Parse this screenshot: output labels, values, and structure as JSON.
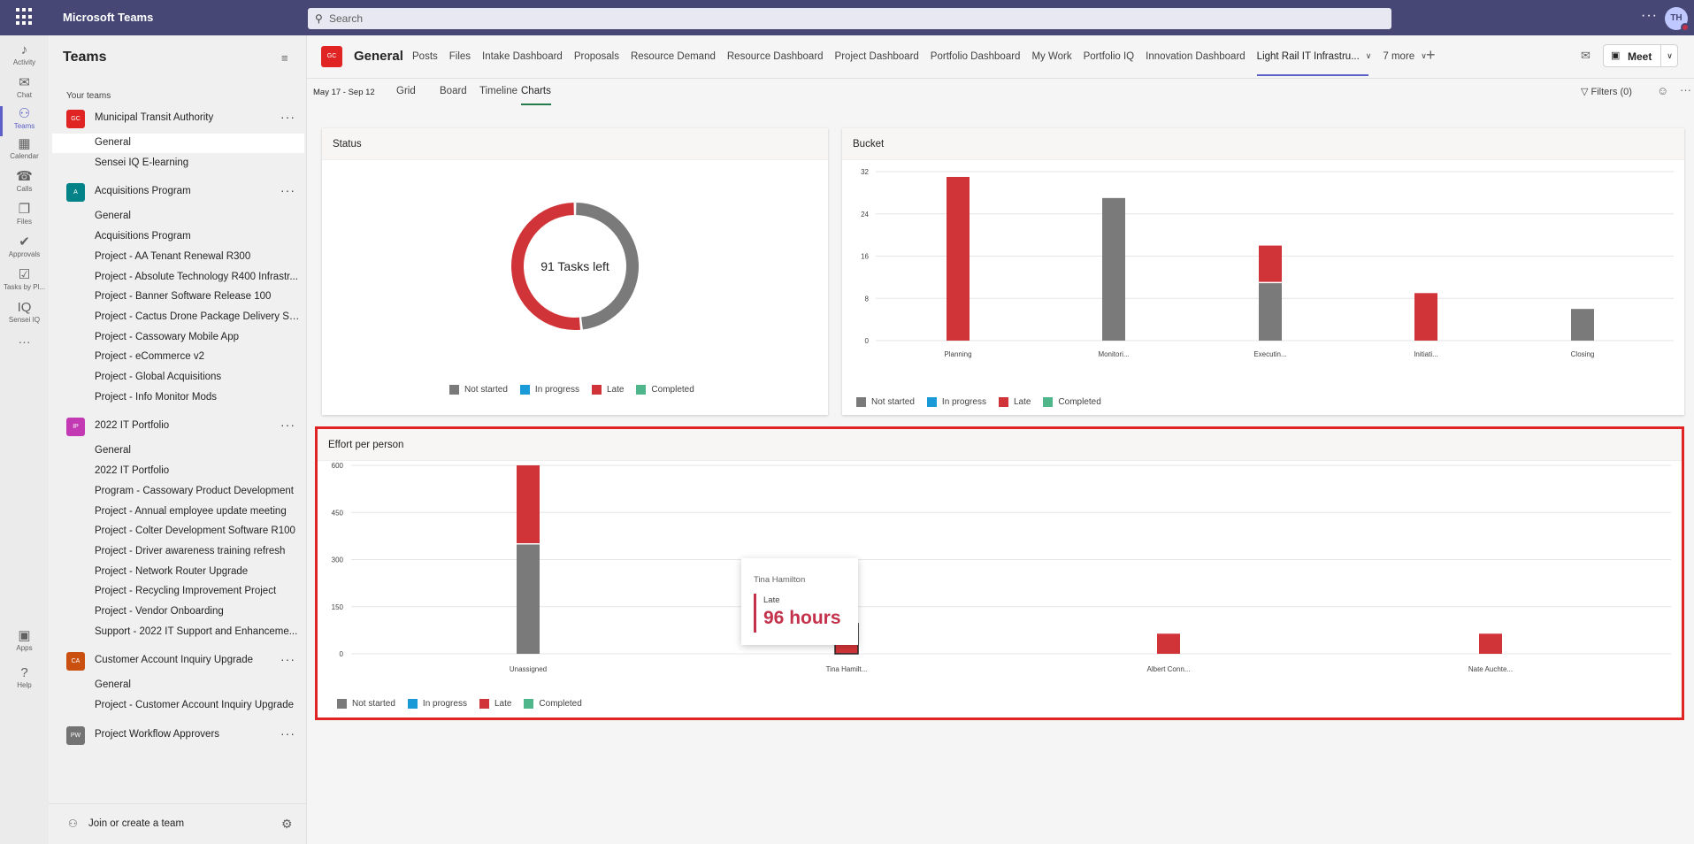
{
  "app": {
    "name": "Microsoft Teams",
    "avatar_initials": "TH"
  },
  "search": {
    "placeholder": "Search"
  },
  "rail": [
    {
      "label": "Activity",
      "icon": "bell-icon"
    },
    {
      "label": "Chat",
      "icon": "chat-icon"
    },
    {
      "label": "Teams",
      "icon": "teams-icon"
    },
    {
      "label": "Calendar",
      "icon": "calendar-icon"
    },
    {
      "label": "Calls",
      "icon": "phone-icon"
    },
    {
      "label": "Files",
      "icon": "file-icon"
    },
    {
      "label": "Approvals",
      "icon": "approvals-icon"
    },
    {
      "label": "Tasks by Pl...",
      "icon": "tasks-icon"
    },
    {
      "label": "Sensei IQ",
      "icon": "sensei-iq-icon"
    },
    {
      "label": "Apps",
      "icon": "apps-icon"
    },
    {
      "label": "Help",
      "icon": "help-icon"
    }
  ],
  "teams_panel": {
    "title": "Teams",
    "your_teams": "Your teams",
    "join_label": "Join or create a team",
    "teams": [
      {
        "name": "Municipal Transit Authority",
        "initials": "GC",
        "color": "#e02424",
        "channels": [
          "General",
          "Sensei IQ E-learning"
        ]
      },
      {
        "name": "Acquisitions Program",
        "initials": "A",
        "color": "#038387",
        "channels": [
          "General",
          "Acquisitions Program",
          "Project - AA Tenant Renewal R300",
          "Project - Absolute Technology R400 Infrastr...",
          "Project - Banner Software Release 100",
          "Project - Cactus Drone Package Delivery So...",
          "Project - Cassowary Mobile App",
          "Project - eCommerce v2",
          "Project - Global Acquisitions",
          "Project - Info Monitor Mods"
        ]
      },
      {
        "name": "2022 IT Portfolio",
        "initials": "IP",
        "color": "#c239b3",
        "channels": [
          "General",
          "2022 IT Portfolio",
          "Program - Cassowary Product Development",
          "Project - Annual employee update meeting",
          "Project - Colter Development Software R100",
          "Project - Driver awareness training refresh",
          "Project - Network Router Upgrade",
          "Project - Recycling Improvement Project",
          "Project - Vendor Onboarding",
          "Support - 2022 IT Support and Enhanceme..."
        ]
      },
      {
        "name": "Customer Account Inquiry Upgrade",
        "initials": "CA",
        "color": "#ca5010",
        "channels": [
          "General",
          "Project - Customer Account Inquiry Upgrade"
        ]
      },
      {
        "name": "Project Workflow Approvers",
        "initials": "PW",
        "color": "#737373",
        "channels": []
      }
    ]
  },
  "channel_header": {
    "team_initials": "GC",
    "channel": "General",
    "tabs": [
      "Posts",
      "Files",
      "Intake Dashboard",
      "Proposals",
      "Resource Demand",
      "Resource Dashboard",
      "Project Dashboard",
      "Portfolio Dashboard",
      "My Work",
      "Portfolio IQ",
      "Innovation Dashboard",
      "Light Rail IT Infrastru...",
      "7 more"
    ],
    "active_tab": "Light Rail IT Infrastru...",
    "meet_label": "Meet"
  },
  "planner": {
    "date_range": "May 17 - Sep 12",
    "views": [
      "Grid",
      "Board",
      "Timeline",
      "Charts"
    ],
    "active_view": "Charts",
    "filters_label": "Filters (0)"
  },
  "legend": [
    {
      "label": "Not started",
      "color": "#7a7a7a"
    },
    {
      "label": "In progress",
      "color": "#1a9bd7"
    },
    {
      "label": "Late",
      "color": "#d13438"
    },
    {
      "label": "Completed",
      "color": "#4fb58a"
    }
  ],
  "status_card": {
    "title": "Status",
    "center_text": "91 Tasks left"
  },
  "bucket_card": {
    "title": "Bucket"
  },
  "effort_card": {
    "title": "Effort per person"
  },
  "tooltip": {
    "person": "Tina Hamilton",
    "status": "Late",
    "value": "96 hours"
  },
  "chart_data": [
    {
      "type": "pie",
      "title": "Status",
      "categories": [
        "Not started",
        "In progress",
        "Late",
        "Completed"
      ],
      "values": [
        44,
        0,
        47,
        0
      ]
    },
    {
      "type": "bar",
      "title": "Bucket",
      "stacked": true,
      "categories": [
        "Planning",
        "Monitori...",
        "Executin...",
        "Initiati...",
        "Closing"
      ],
      "yticks": [
        0,
        8,
        16,
        24,
        32
      ],
      "ylim": [
        0,
        32
      ],
      "series": [
        {
          "name": "Not started",
          "values": [
            0,
            27,
            11,
            0,
            6
          ]
        },
        {
          "name": "In progress",
          "values": [
            0,
            0,
            0,
            0,
            0
          ]
        },
        {
          "name": "Late",
          "values": [
            31,
            0,
            7,
            9,
            0
          ]
        },
        {
          "name": "Completed",
          "values": [
            0,
            0,
            0,
            0,
            0
          ]
        }
      ]
    },
    {
      "type": "bar",
      "title": "Effort per person",
      "stacked": true,
      "categories": [
        "Unassigned",
        "Tina Hamilt...",
        "Albert Conn...",
        "Nate Auchte..."
      ],
      "yticks": [
        0,
        150,
        300,
        450,
        600
      ],
      "ylim": [
        0,
        600
      ],
      "series": [
        {
          "name": "Not started",
          "values": [
            350,
            0,
            0,
            0
          ]
        },
        {
          "name": "In progress",
          "values": [
            0,
            0,
            0,
            0
          ]
        },
        {
          "name": "Late",
          "values": [
            250,
            96,
            64,
            64
          ]
        },
        {
          "name": "Completed",
          "values": [
            0,
            0,
            0,
            0
          ]
        }
      ]
    }
  ]
}
